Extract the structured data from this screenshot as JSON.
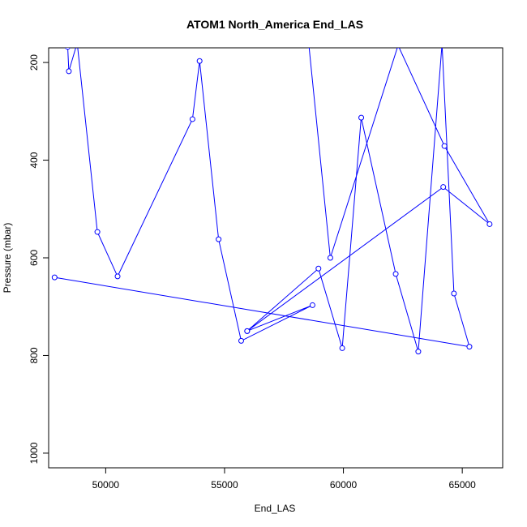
{
  "chart_data": {
    "type": "line",
    "title": "ATOM1 North_America End_LAS",
    "xlabel": "End_LAS",
    "ylabel": "Pressure (mbar)",
    "xlim": [
      47600,
      66700
    ],
    "ylim": [
      1030,
      170
    ],
    "y_reversed": true,
    "x_ticks": [
      50000,
      55000,
      60000,
      65000
    ],
    "x_tick_labels": [
      "50000",
      "55000",
      "60000",
      "65000"
    ],
    "y_ticks": [
      200,
      400,
      600,
      800,
      1000
    ],
    "y_tick_labels": [
      "200",
      "400",
      "600",
      "800",
      "1000"
    ],
    "grid": false,
    "legend": "none",
    "series": [
      {
        "color": "#0000ff",
        "marker": "open-circle",
        "points": [
          {
            "x": 47850,
            "y": 640
          },
          {
            "x": 65300,
            "y": 782
          },
          {
            "x": 64650,
            "y": 673
          },
          {
            "x": 64150,
            "y": 162
          },
          {
            "x": 63150,
            "y": 792
          },
          {
            "x": 62200,
            "y": 633
          },
          {
            "x": 60750,
            "y": 313
          },
          {
            "x": 59950,
            "y": 785
          },
          {
            "x": 58950,
            "y": 622
          },
          {
            "x": 55950,
            "y": 750
          },
          {
            "x": 58700,
            "y": 697
          },
          {
            "x": 55700,
            "y": 770
          },
          {
            "x": 54750,
            "y": 562
          },
          {
            "x": 53950,
            "y": 197
          },
          {
            "x": 53650,
            "y": 316
          },
          {
            "x": 50500,
            "y": 638
          },
          {
            "x": 49650,
            "y": 547
          },
          {
            "x": 48800,
            "y": 160
          },
          {
            "x": 48450,
            "y": 218
          },
          {
            "x": 48400,
            "y": 168
          },
          {
            "x": 58550,
            "y": 165
          },
          {
            "x": 59450,
            "y": 600
          },
          {
            "x": 62300,
            "y": 165
          },
          {
            "x": 64250,
            "y": 371
          },
          {
            "x": 66150,
            "y": 531
          },
          {
            "x": 64200,
            "y": 455
          },
          {
            "x": 55950,
            "y": 750
          }
        ]
      }
    ]
  }
}
